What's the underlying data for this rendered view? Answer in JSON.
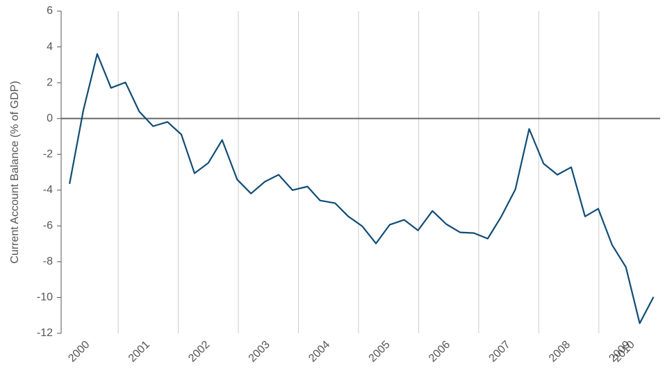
{
  "chart_data": {
    "type": "line",
    "y_label": "Current Account Balance (% of GDP)",
    "x": [
      2000.19,
      2000.42,
      2000.65,
      2000.88,
      2001.12,
      2001.35,
      2001.58,
      2001.82,
      2002.05,
      2002.27,
      2002.5,
      2002.73,
      2002.98,
      2003.21,
      2003.44,
      2003.67,
      2003.9,
      2004.15,
      2004.36,
      2004.61,
      2004.83,
      2005.06,
      2005.29,
      2005.52,
      2005.76,
      2005.99,
      2006.23,
      2006.46,
      2006.69,
      2006.92,
      2007.15,
      2007.37,
      2007.61,
      2007.84,
      2008.08,
      2008.31,
      2008.54,
      2008.77,
      2008.99,
      2009.22,
      2009.45,
      2009.68,
      2009.91
    ],
    "series": [
      {
        "color": "#0f4c75",
        "values": [
          -3.65,
          0.47,
          3.61,
          1.71,
          2.02,
          0.39,
          -0.43,
          -0.19,
          -0.89,
          -3.06,
          -2.48,
          -1.2,
          -3.41,
          -4.19,
          -3.53,
          -3.14,
          -4.0,
          -3.8,
          -4.58,
          -4.73,
          -5.47,
          -6.01,
          -6.98,
          -5.93,
          -5.66,
          -6.25,
          -5.16,
          -5.9,
          -6.36,
          -6.4,
          -6.71,
          -5.51,
          -3.96,
          -0.58,
          -2.52,
          -3.14,
          -2.72,
          -5.47,
          -5.04,
          -7.06,
          -8.3,
          -11.44,
          -9.97
        ]
      }
    ],
    "xlim": [
      2000.05,
      2010.02
    ],
    "xticks": [
      2000,
      2001,
      2002,
      2003,
      2004,
      2005,
      2006,
      2007,
      2008,
      2009,
      2010
    ],
    "ylim": [
      -12,
      6
    ],
    "yticks": [
      6,
      4,
      2,
      0,
      -2,
      -4,
      -6,
      -8,
      -10,
      -12
    ],
    "grid": true
  }
}
